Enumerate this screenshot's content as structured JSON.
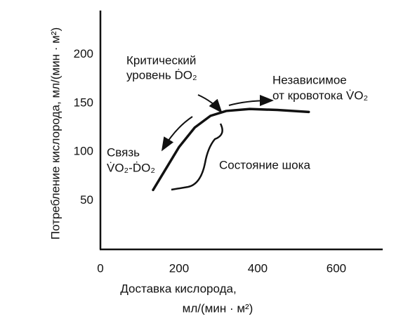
{
  "chart_data": {
    "type": "line",
    "x": [
      134,
      170,
      200,
      240,
      280,
      320,
      380,
      450,
      530
    ],
    "series": [
      {
        "color": "#111111",
        "values": [
          61,
          85,
          105,
          125,
          137,
          142,
          144,
          143,
          141
        ]
      }
    ],
    "xlim": [
      0,
      718
    ],
    "ylim": [
      0,
      245
    ],
    "xticks": [
      0,
      200,
      400,
      600
    ],
    "yticks": [
      50,
      100,
      150,
      200
    ],
    "grid": false,
    "x_label": [
      "Доставка кислорода,",
      "мл/(мин · м²)"
    ],
    "y_label": "Потребление кислорода, мл/(мин · м²)",
    "annotations": [
      "Критический",
      "уровень ḊO₂",
      "Независимое",
      "от кровотока V̇O₂",
      "Связь",
      "V̇O₂-ḊO₂",
      "Состояние шока"
    ]
  }
}
